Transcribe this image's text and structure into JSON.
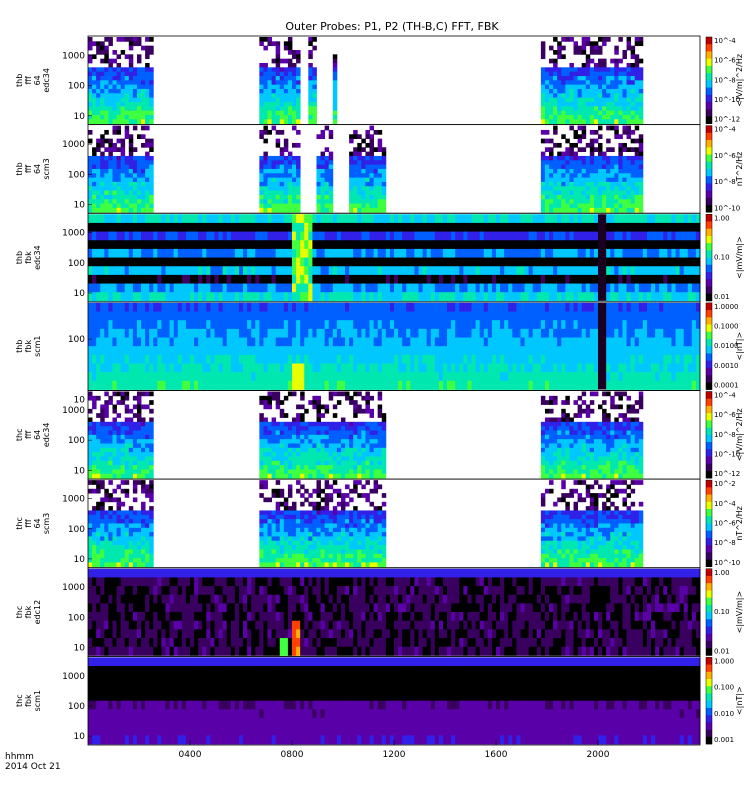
{
  "chart_data": {
    "type": "heatmap",
    "title": "Outer Probes: P1, P2 (TH-B,C) FFT, FBK",
    "x_axis": {
      "ticks": [
        "0400",
        "0800",
        "1200",
        "1600",
        "2000"
      ],
      "label_line1": "hhmm",
      "label_line2": "2014 Oct 21",
      "range_hhmm": [
        "0000",
        "2400"
      ]
    },
    "panels": [
      {
        "id": "thb-fff-edc34",
        "ylabel": [
          "thb",
          "fff",
          "64",
          "edc34"
        ],
        "y_ticks": [
          "1000",
          "100",
          "10"
        ],
        "colorbar_label": "<|V/m|^2/Hz",
        "colorbar_ticks": [
          "10^-4",
          "10^-6",
          "10^-8",
          "10^-10",
          "10^-12"
        ],
        "scale": "log",
        "data_windows_hhmm": [
          [
            "0000",
            "0230"
          ],
          [
            "0640",
            "0820"
          ],
          [
            "0840",
            "0900"
          ],
          [
            "0935",
            "0950"
          ],
          [
            "1745",
            "2145"
          ]
        ]
      },
      {
        "id": "thb-fff-scm3",
        "ylabel": [
          "thb",
          "fff",
          "64",
          "scm3"
        ],
        "y_ticks": [
          "1000",
          "100",
          "10"
        ],
        "colorbar_label": "nT^2/Hz",
        "colorbar_ticks": [
          "10^-4",
          "10^-6",
          "10^-8",
          "10^-10"
        ],
        "scale": "log",
        "data_windows_hhmm": [
          [
            "0000",
            "0230"
          ],
          [
            "0640",
            "0820"
          ],
          [
            "0900",
            "0940"
          ],
          [
            "1010",
            "1140"
          ],
          [
            "1745",
            "2145"
          ]
        ]
      },
      {
        "id": "thb-fbk-edc34",
        "ylabel": [
          "thb",
          "fbk",
          "edc34"
        ],
        "y_ticks": [
          "1000",
          "100",
          "10"
        ],
        "colorbar_label": "<|mV/m|>",
        "colorbar_ticks": [
          "1.00",
          "0.10",
          "0.01"
        ],
        "scale": "log",
        "features": "broadband enhancement near 0800-0900; data gap near 2000-2030",
        "data_windows_hhmm": [
          [
            "0000",
            "2400"
          ]
        ]
      },
      {
        "id": "thb-fbk-scm1",
        "ylabel": [
          "thb",
          "fbk",
          "scm1"
        ],
        "y_ticks": [
          "100",
          "10"
        ],
        "colorbar_label": "<|nT|>",
        "colorbar_ticks": [
          "1.0000",
          "0.1000",
          "0.0100",
          "0.0010",
          "0.0001"
        ],
        "scale": "log",
        "features": "enhancement near 0800-0845; data gap near 2000-2030",
        "data_windows_hhmm": [
          [
            "0000",
            "2400"
          ]
        ]
      },
      {
        "id": "thc-fff-edc34",
        "ylabel": [
          "thc",
          "fff",
          "64",
          "edc34"
        ],
        "y_ticks": [
          "1000",
          "100",
          "10"
        ],
        "colorbar_label": "<|V/m|^2/Hz",
        "colorbar_ticks": [
          "10^-4",
          "10^-6",
          "10^-8",
          "10^-10",
          "10^-12"
        ],
        "scale": "log",
        "data_windows_hhmm": [
          [
            "0000",
            "0230"
          ],
          [
            "0640",
            "1140"
          ],
          [
            "1745",
            "2145"
          ]
        ]
      },
      {
        "id": "thc-fff-scm3",
        "ylabel": [
          "thc",
          "fff",
          "64",
          "scm3"
        ],
        "y_ticks": [
          "1000",
          "100",
          "10"
        ],
        "colorbar_label": "nT^2/Hz",
        "colorbar_ticks": [
          "10^-2",
          "10^-4",
          "10^-6",
          "10^-8",
          "10^-10"
        ],
        "scale": "log",
        "data_windows_hhmm": [
          [
            "0000",
            "0230"
          ],
          [
            "0640",
            "1140"
          ],
          [
            "1745",
            "2145"
          ]
        ]
      },
      {
        "id": "thc-fbk-edc12",
        "ylabel": [
          "thc",
          "fbk",
          "edc12"
        ],
        "y_ticks": [
          "1000",
          "100",
          "10"
        ],
        "colorbar_label": "<|mV/m|>",
        "colorbar_ticks": [
          "1.00",
          "0.10",
          "0.01"
        ],
        "scale": "log",
        "features": "strong low-frequency burst near 0800-0840",
        "data_windows_hhmm": [
          [
            "0000",
            "2400"
          ]
        ]
      },
      {
        "id": "thc-fbk-scm1",
        "ylabel": [
          "thc",
          "fbk",
          "scm1"
        ],
        "y_ticks": [
          "1000",
          "100",
          "10"
        ],
        "colorbar_label": "<|nT|>",
        "colorbar_ticks": [
          "1.000",
          "0.100",
          "0.010",
          "0.001"
        ],
        "scale": "log",
        "data_windows_hhmm": [
          [
            "0000",
            "2400"
          ]
        ]
      }
    ],
    "colormap": [
      "#000000",
      "#3a0060",
      "#5a00a8",
      "#3020e8",
      "#0060ff",
      "#00c8ff",
      "#00e8b0",
      "#40ff40",
      "#e8ff00",
      "#ffb000",
      "#ff4000",
      "#c00000",
      "#ffffff"
    ]
  }
}
